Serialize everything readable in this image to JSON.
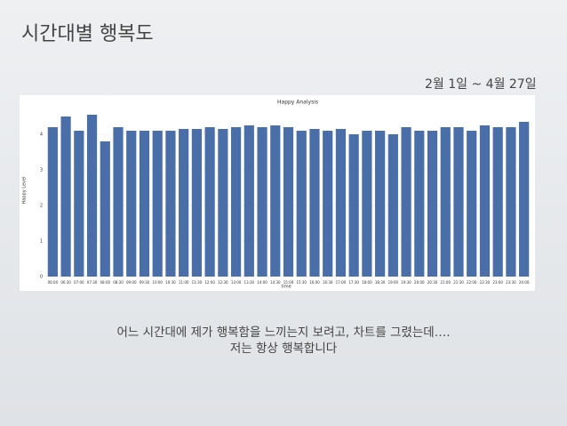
{
  "header": {
    "title": "시간대별 행복도",
    "date_range": "2월 1일 ~ 4월 27일"
  },
  "chart_data": {
    "type": "bar",
    "title": "Happy Analysis",
    "x_label": "time",
    "y_label": "Happy Level",
    "categories": [
      "06:00",
      "06:30",
      "07:00",
      "07:30",
      "08:00",
      "08:30",
      "09:00",
      "09:30",
      "10:00",
      "10:30",
      "11:00",
      "11:30",
      "12:00",
      "12:30",
      "13:00",
      "13:30",
      "14:00",
      "14:30",
      "15:00",
      "15:30",
      "16:00",
      "16:30",
      "17:00",
      "17:30",
      "18:00",
      "18:30",
      "19:00",
      "19:30",
      "20:00",
      "20:30",
      "21:00",
      "21:30",
      "22:00",
      "22:30",
      "23:00",
      "23:30",
      "24:00"
    ],
    "values": [
      4.2,
      4.5,
      4.1,
      4.55,
      3.8,
      4.2,
      4.1,
      4.1,
      4.1,
      4.1,
      4.15,
      4.15,
      4.2,
      4.15,
      4.2,
      4.25,
      4.2,
      4.25,
      4.2,
      4.1,
      4.15,
      4.1,
      4.15,
      4.0,
      4.1,
      4.1,
      4.0,
      4.2,
      4.1,
      4.1,
      4.2,
      4.2,
      4.1,
      4.25,
      4.2,
      4.2,
      4.35
    ],
    "color": "#4a6ea8",
    "ylim": [
      0,
      5
    ],
    "yticks": [
      0,
      1,
      2,
      3,
      4
    ],
    "grid": true
  },
  "caption": [
    "어느 시간대에 제가 행복함을 느끼는지 보려고, 차트를 그렸는데….",
    "저는 항상 행복합니다"
  ]
}
